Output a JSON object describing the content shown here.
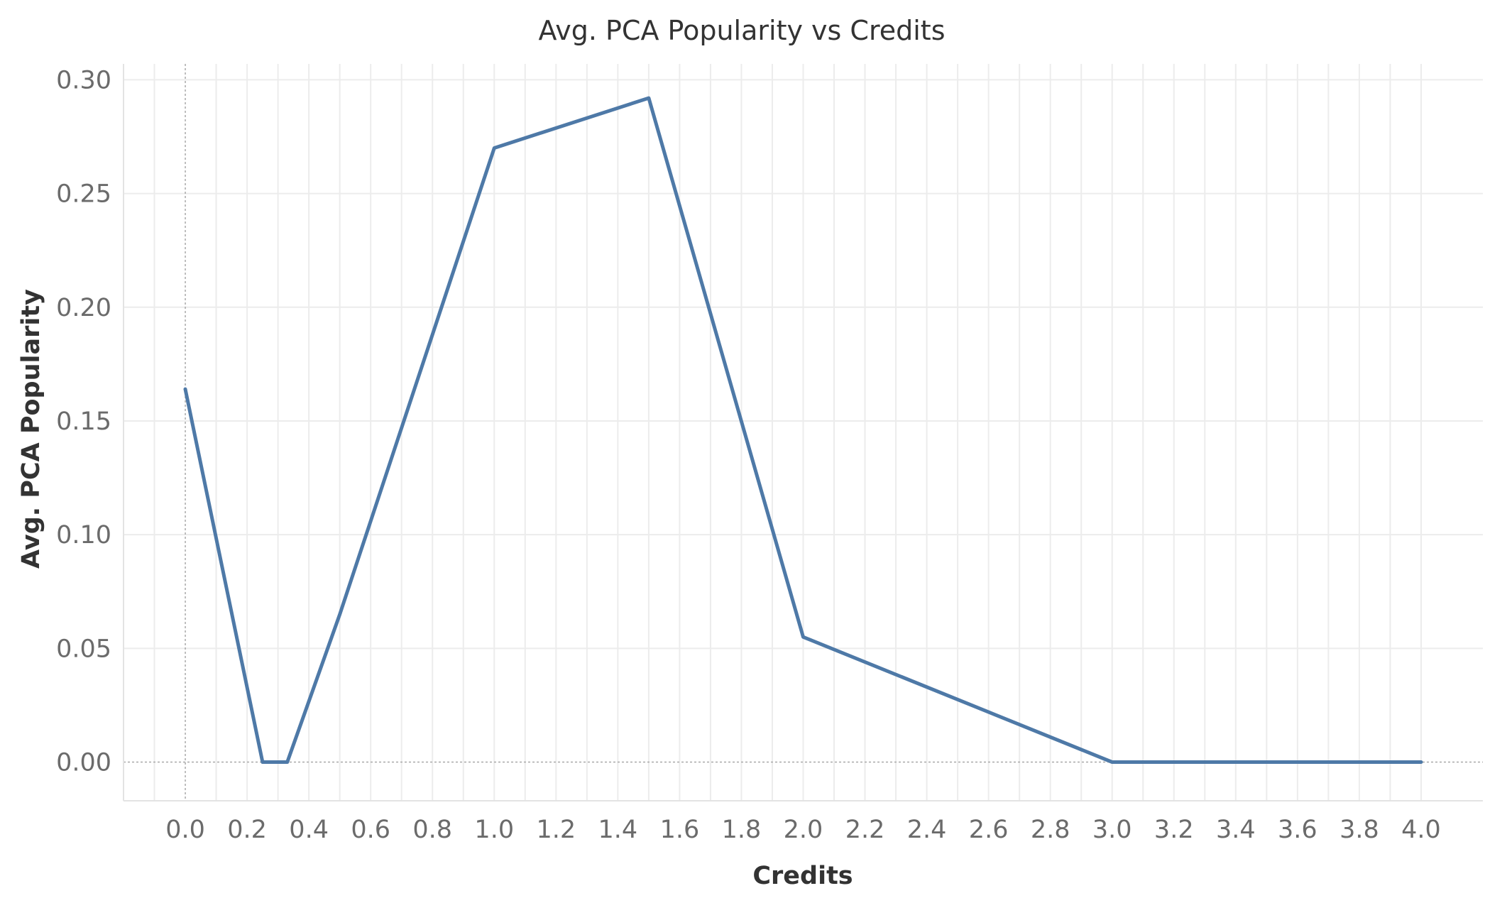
{
  "chart_data": {
    "type": "line",
    "title": "Avg. PCA Popularity vs Credits",
    "xlabel": "Credits",
    "ylabel": "Avg. PCA Popularity",
    "xlim": [
      -0.2,
      4.2
    ],
    "ylim": [
      -0.017,
      0.307
    ],
    "x_ticks": [
      "0.0",
      "0.2",
      "0.4",
      "0.6",
      "0.8",
      "1.0",
      "1.2",
      "1.4",
      "1.6",
      "1.8",
      "2.0",
      "2.2",
      "2.4",
      "2.6",
      "2.8",
      "3.0",
      "3.2",
      "3.4",
      "3.6",
      "3.8",
      "4.0"
    ],
    "y_ticks": [
      "0.00",
      "0.05",
      "0.10",
      "0.15",
      "0.20",
      "0.25",
      "0.30"
    ],
    "grid": true,
    "color": "#4e79a7",
    "series": [
      {
        "x": [
          0.0,
          0.25,
          0.33,
          0.5,
          1.0,
          1.5,
          2.0,
          3.0,
          4.0
        ],
        "y": [
          0.164,
          0.0,
          0.0,
          0.065,
          0.27,
          0.292,
          0.055,
          0.0,
          0.0
        ]
      }
    ]
  }
}
